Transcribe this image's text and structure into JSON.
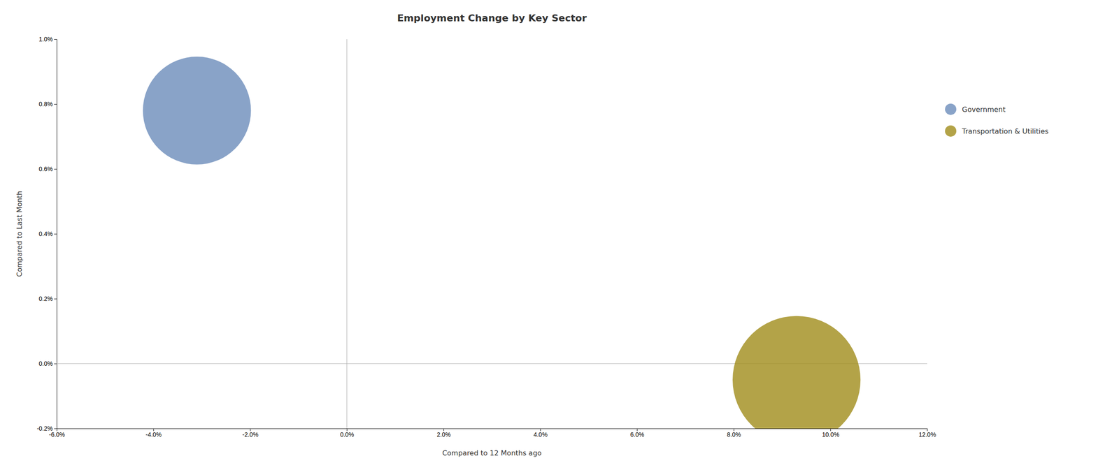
{
  "chart_data": {
    "type": "bubble",
    "title": "Employment Change by Key Sector",
    "xlabel": "Compared to 12 Months ago",
    "ylabel": "Compared to Last Month",
    "series": [
      {
        "name": "Government",
        "color": "#6b8cba",
        "x": [
          -0.031
        ],
        "values": [
          0.0078
        ],
        "size": [
          25000
        ]
      },
      {
        "name": "Transportation & Utilities",
        "color": "#a08c1a",
        "x": [
          0.093
        ],
        "values": [
          -0.0005
        ],
        "size": [
          35000
        ]
      }
    ],
    "xlim": [
      -0.06,
      0.12
    ],
    "ylim": [
      -0.002,
      0.01
    ],
    "xticks": [
      {
        "value": -0.06,
        "label": "-6.0%"
      },
      {
        "value": -0.04,
        "label": "-4.0%"
      },
      {
        "value": -0.02,
        "label": "-2.0%"
      },
      {
        "value": 0.0,
        "label": "0.0%"
      },
      {
        "value": 0.02,
        "label": "2.0%"
      },
      {
        "value": 0.04,
        "label": "4.0%"
      },
      {
        "value": 0.06,
        "label": "6.0%"
      },
      {
        "value": 0.08,
        "label": "8.0%"
      },
      {
        "value": 0.1,
        "label": "10.0%"
      },
      {
        "value": 0.12,
        "label": "12.0%"
      }
    ],
    "yticks": [
      {
        "value": -0.002,
        "label": "-0.2%"
      },
      {
        "value": 0.0,
        "label": "0.0%"
      },
      {
        "value": 0.002,
        "label": "0.2%"
      },
      {
        "value": 0.004,
        "label": "0.4%"
      },
      {
        "value": 0.006,
        "label": "0.6%"
      },
      {
        "value": 0.008,
        "label": "0.8%"
      },
      {
        "value": 0.01,
        "label": "1.0%"
      }
    ],
    "grid": false,
    "legend": "right"
  }
}
